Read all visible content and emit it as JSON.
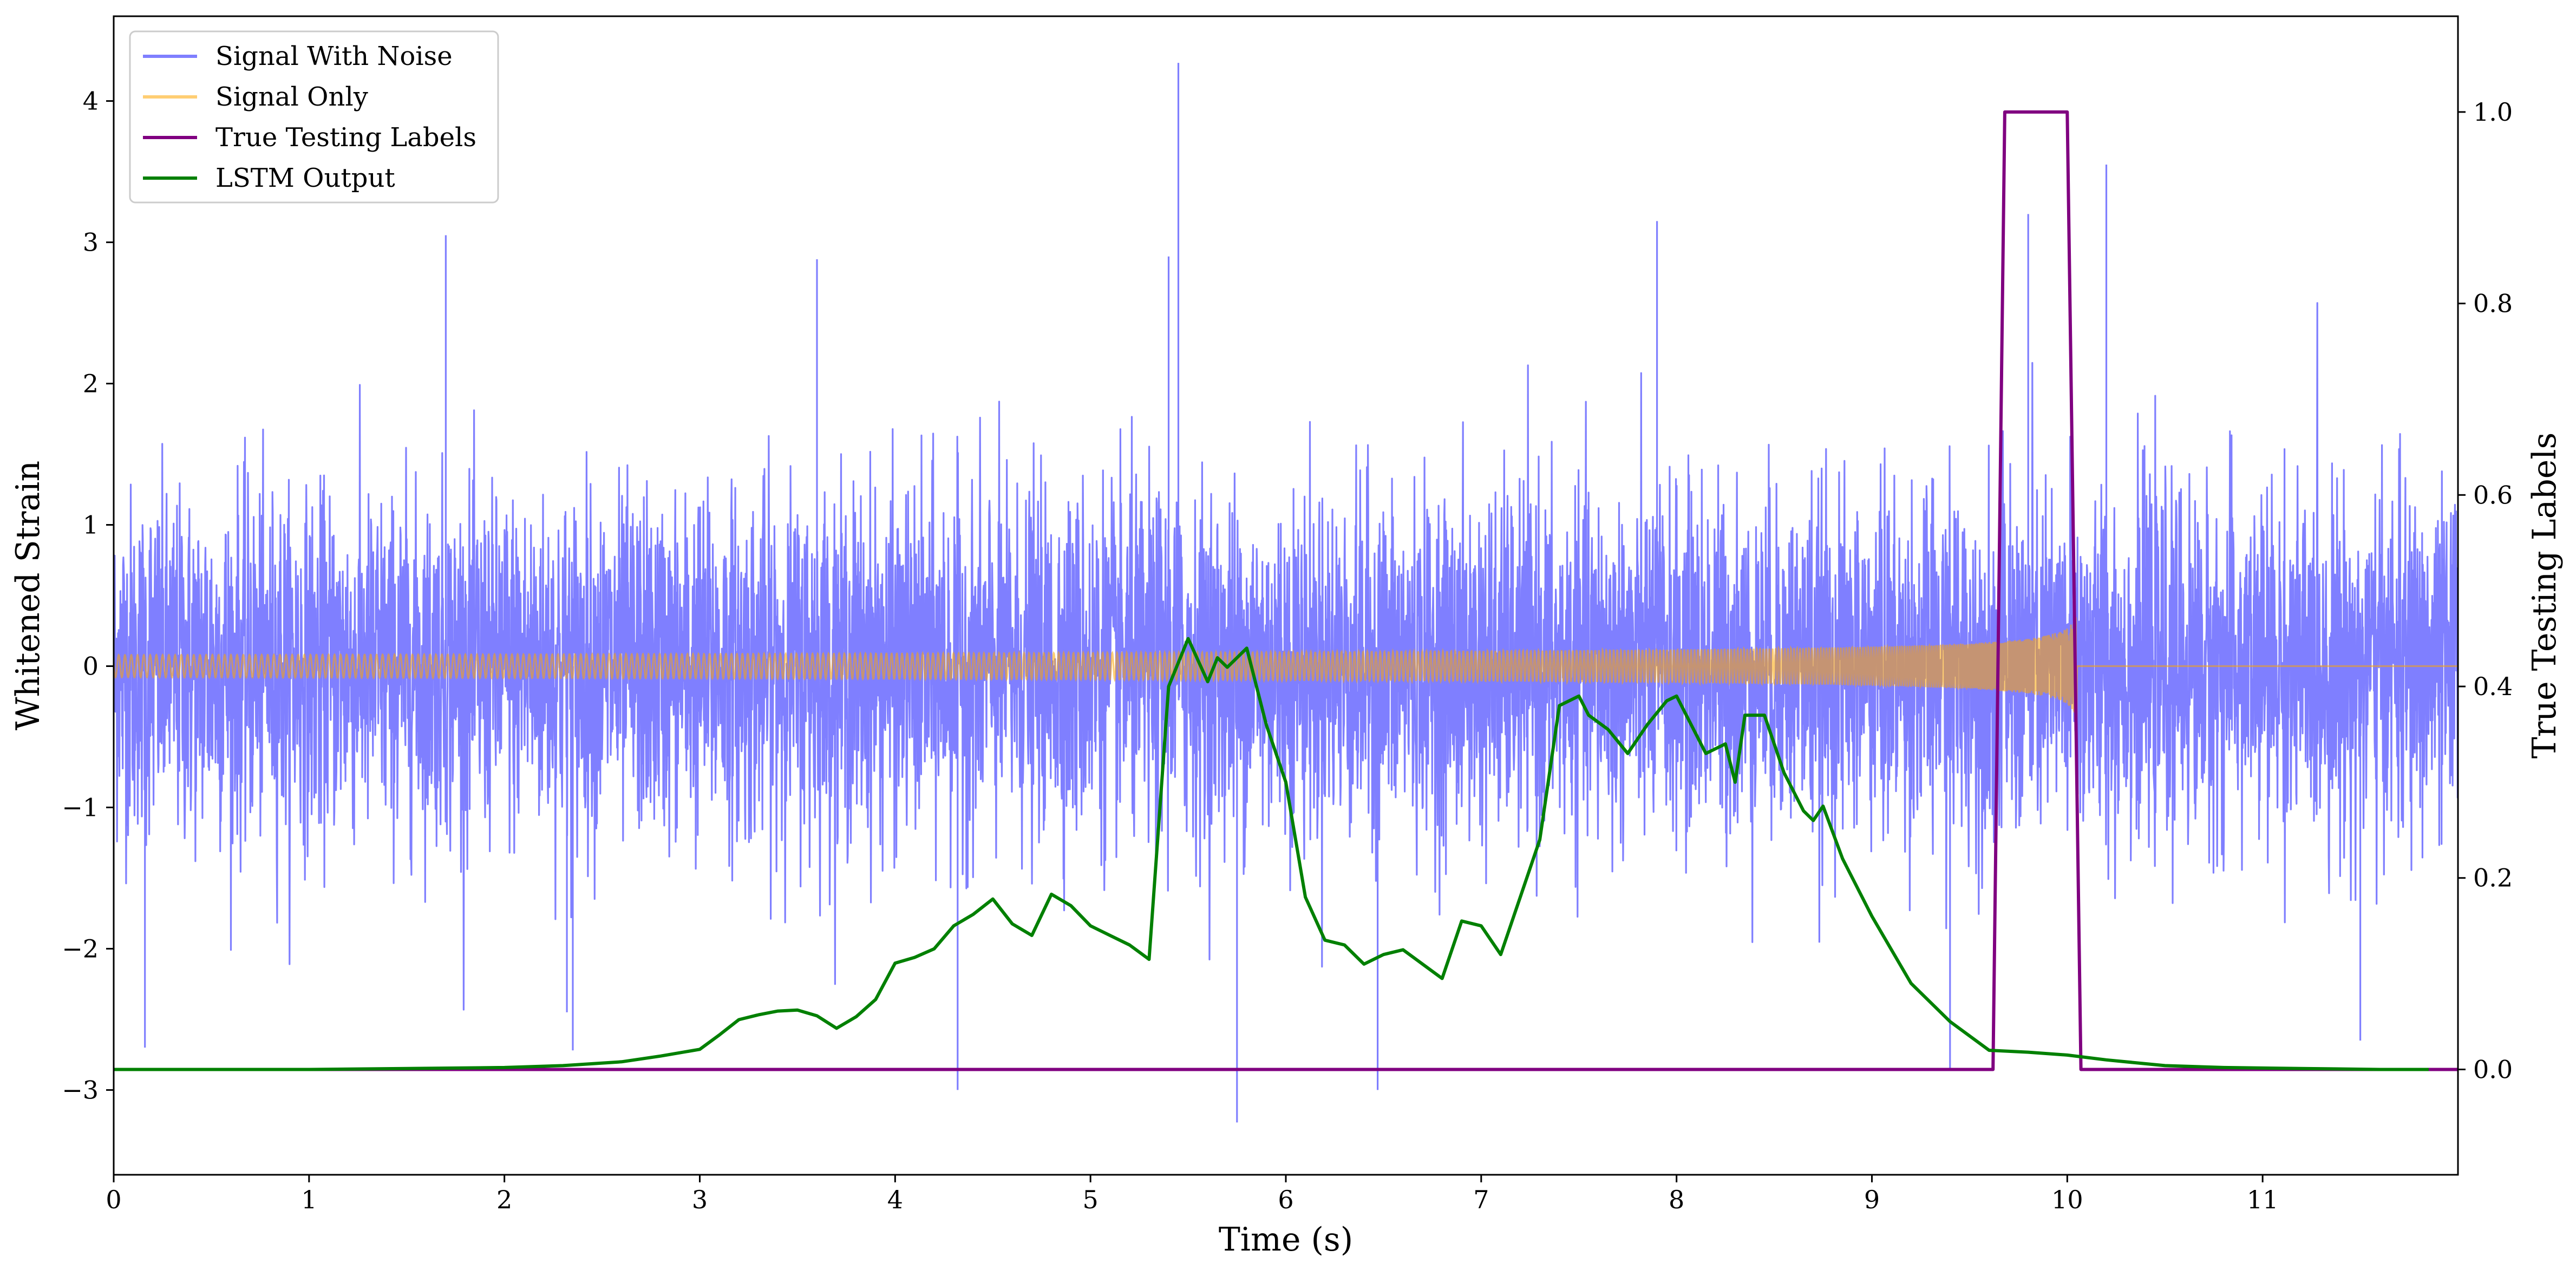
{
  "chart_data": {
    "type": "line",
    "title": "",
    "xlabel": "Time (s)",
    "ylabel": "Whitened Strain",
    "ylabel_right": "True Testing Labels",
    "xlim": [
      0,
      12
    ],
    "ylim": [
      -3.6,
      4.6
    ],
    "ylim_right": [
      -0.11,
      1.1
    ],
    "xticks": [
      0,
      1,
      2,
      3,
      4,
      5,
      6,
      7,
      8,
      9,
      10,
      11
    ],
    "xtick_labels": [
      "0",
      "1",
      "2",
      "3",
      "4",
      "5",
      "6",
      "7",
      "8",
      "9",
      "10",
      "11"
    ],
    "yticks": [
      -3,
      -2,
      -1,
      0,
      1,
      2,
      3,
      4
    ],
    "ytick_labels": [
      "−3",
      "−2",
      "−1",
      "0",
      "1",
      "2",
      "3",
      "4"
    ],
    "yticks_right": [
      0.0,
      0.2,
      0.4,
      0.6,
      0.8,
      1.0
    ],
    "ytick_labels_right": [
      "0.0",
      "0.2",
      "0.4",
      "0.6",
      "0.8",
      "1.0"
    ],
    "grid": false,
    "legend_position": "top-left",
    "series": [
      {
        "name": "Signal With Noise",
        "color": "#7f7fff",
        "axis": "left",
        "description_kind": "white noise",
        "std": 0.6,
        "clip": [
          -3.2,
          4.3
        ],
        "spikes": [
          {
            "x": 0.16,
            "y": -2.7
          },
          {
            "x": 1.7,
            "y": 3.05
          },
          {
            "x": 2.32,
            "y": -2.45
          },
          {
            "x": 2.35,
            "y": -2.72
          },
          {
            "x": 3.6,
            "y": 2.88
          },
          {
            "x": 4.32,
            "y": -3.0
          },
          {
            "x": 5.4,
            "y": 2.9
          },
          {
            "x": 5.45,
            "y": 4.27
          },
          {
            "x": 5.75,
            "y": -3.23
          },
          {
            "x": 6.47,
            "y": -3.0
          },
          {
            "x": 7.9,
            "y": 3.15
          },
          {
            "x": 9.8,
            "y": 3.2
          },
          {
            "x": 10.2,
            "y": 3.55
          },
          {
            "x": 9.4,
            "y": -2.85
          },
          {
            "x": 11.5,
            "y": -2.65
          }
        ]
      },
      {
        "name": "Signal Only",
        "color": "#ffa500",
        "axis": "left",
        "description_kind": "chirp",
        "chirp_end": 10.05,
        "chirp_max_amplitude": 0.5
      },
      {
        "name": "True Testing Labels",
        "color": "#800080",
        "axis": "right",
        "x": [
          0,
          9.62,
          9.68,
          10.0,
          10.07,
          12.0
        ],
        "y": [
          0,
          0,
          1,
          1,
          0,
          0
        ]
      },
      {
        "name": "LSTM Output",
        "color": "#008000",
        "axis": "right",
        "x": [
          0,
          0.5,
          1.0,
          1.5,
          2.0,
          2.3,
          2.6,
          2.8,
          3.0,
          3.1,
          3.2,
          3.3,
          3.4,
          3.5,
          3.6,
          3.7,
          3.8,
          3.9,
          4.0,
          4.1,
          4.2,
          4.3,
          4.4,
          4.5,
          4.6,
          4.7,
          4.8,
          4.9,
          5.0,
          5.1,
          5.2,
          5.3,
          5.4,
          5.5,
          5.6,
          5.65,
          5.7,
          5.8,
          5.9,
          6.0,
          6.1,
          6.2,
          6.3,
          6.4,
          6.5,
          6.6,
          6.7,
          6.8,
          6.9,
          7.0,
          7.1,
          7.2,
          7.3,
          7.4,
          7.5,
          7.55,
          7.65,
          7.75,
          7.85,
          7.95,
          8.0,
          8.05,
          8.15,
          8.25,
          8.3,
          8.35,
          8.45,
          8.55,
          8.65,
          8.7,
          8.75,
          8.85,
          9.0,
          9.2,
          9.4,
          9.6,
          9.8,
          10.0,
          10.2,
          10.5,
          10.8,
          11.2,
          11.6,
          11.85
        ],
        "y": [
          0.0,
          0.0,
          0.0,
          0.001,
          0.002,
          0.004,
          0.008,
          0.014,
          0.021,
          0.036,
          0.052,
          0.057,
          0.061,
          0.062,
          0.056,
          0.043,
          0.055,
          0.073,
          0.111,
          0.117,
          0.126,
          0.15,
          0.162,
          0.178,
          0.152,
          0.14,
          0.183,
          0.171,
          0.15,
          0.14,
          0.13,
          0.115,
          0.4,
          0.45,
          0.405,
          0.43,
          0.42,
          0.44,
          0.36,
          0.3,
          0.18,
          0.135,
          0.13,
          0.11,
          0.12,
          0.125,
          0.11,
          0.095,
          0.155,
          0.15,
          0.12,
          0.18,
          0.24,
          0.38,
          0.39,
          0.37,
          0.355,
          0.33,
          0.36,
          0.385,
          0.39,
          0.37,
          0.33,
          0.34,
          0.3,
          0.37,
          0.37,
          0.31,
          0.27,
          0.26,
          0.275,
          0.22,
          0.16,
          0.09,
          0.05,
          0.02,
          0.018,
          0.015,
          0.01,
          0.004,
          0.002,
          0.001,
          0.0,
          0.0
        ]
      }
    ]
  }
}
